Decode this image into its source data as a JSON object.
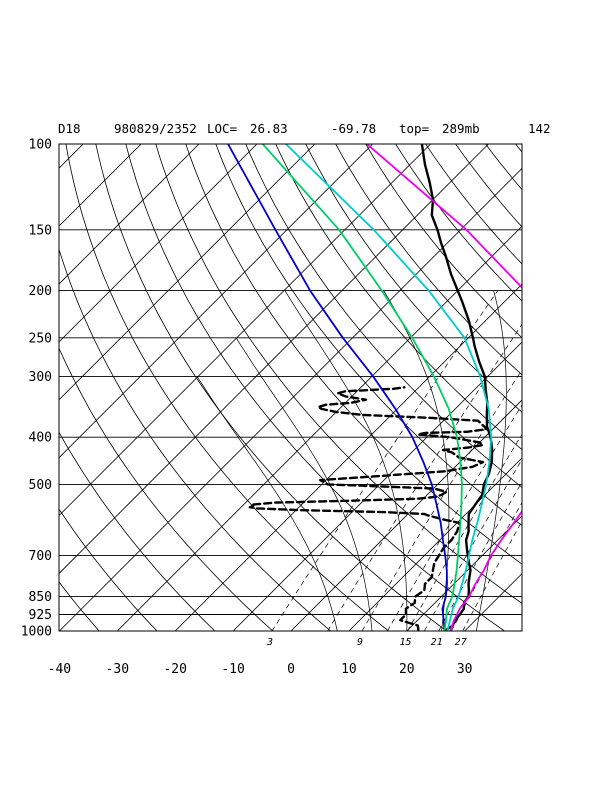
{
  "header": {
    "station": "D18",
    "datetime": "980829/2352",
    "loc_label": "LOC=",
    "lat": "26.83",
    "lon": "-69.78",
    "top_label": "top=",
    "top_value": "289mb",
    "count": "142"
  },
  "chart_data": {
    "type": "skew-t",
    "pressure_ticks": [
      100,
      150,
      200,
      250,
      300,
      400,
      500,
      700,
      850,
      925,
      1000
    ],
    "temperature_ticks": [
      -40,
      -30,
      -20,
      -10,
      0,
      10,
      20,
      30
    ],
    "mixing_ratio_labels": [
      "3",
      "9",
      "15",
      "21",
      "27"
    ],
    "xlim": [
      -40,
      40
    ],
    "ylim": [
      1000,
      100
    ],
    "y_scale": "log",
    "grid": true,
    "series": [
      {
        "kind": "temperature",
        "color": "#000000",
        "style": "solid",
        "points": [
          [
            1000,
            26.5
          ],
          [
            975,
            27
          ],
          [
            950,
            26.5
          ],
          [
            925,
            26.3
          ],
          [
            900,
            26
          ],
          [
            875,
            25
          ],
          [
            850,
            24.7
          ],
          [
            825,
            23.7
          ],
          [
            800,
            22.5
          ],
          [
            775,
            21.5
          ],
          [
            750,
            20.5
          ],
          [
            725,
            19
          ],
          [
            700,
            17.5
          ],
          [
            675,
            16
          ],
          [
            650,
            14.5
          ],
          [
            625,
            13.5
          ],
          [
            600,
            12
          ],
          [
            575,
            10.5
          ],
          [
            550,
            10
          ],
          [
            525,
            9.5
          ],
          [
            500,
            8
          ],
          [
            475,
            7
          ],
          [
            450,
            5.5
          ],
          [
            425,
            3.5
          ],
          [
            400,
            1
          ],
          [
            380,
            -1.5
          ],
          [
            360,
            -3.5
          ],
          [
            340,
            -5.5
          ],
          [
            320,
            -8
          ],
          [
            300,
            -10.5
          ],
          [
            280,
            -14
          ],
          [
            260,
            -17.5
          ],
          [
            250,
            -19.2
          ],
          [
            230,
            -23
          ],
          [
            210,
            -27.5
          ],
          [
            200,
            -30
          ],
          [
            185,
            -34
          ],
          [
            170,
            -38
          ],
          [
            160,
            -41
          ],
          [
            150,
            -44
          ],
          [
            140,
            -47.5
          ],
          [
            130,
            -50
          ],
          [
            120,
            -53.5
          ],
          [
            110,
            -57.5
          ],
          [
            100,
            -61.5
          ]
        ]
      },
      {
        "kind": "dewpoint",
        "color": "#000000",
        "style": "dashed",
        "points": [
          [
            1000,
            22
          ],
          [
            975,
            21
          ],
          [
            950,
            17
          ],
          [
            925,
            17
          ],
          [
            900,
            16
          ],
          [
            875,
            16.5
          ],
          [
            850,
            15.5
          ],
          [
            825,
            16
          ],
          [
            800,
            15
          ],
          [
            775,
            15
          ],
          [
            750,
            14
          ],
          [
            725,
            13
          ],
          [
            700,
            12.5
          ],
          [
            675,
            12
          ],
          [
            650,
            12
          ],
          [
            625,
            11.5
          ],
          [
            600,
            10.5
          ],
          [
            590,
            7
          ],
          [
            580,
            4
          ],
          [
            575,
            2.8
          ],
          [
            570,
            -4.5
          ],
          [
            565,
            -19
          ],
          [
            560,
            -27
          ],
          [
            557,
            -28.5
          ],
          [
            553,
            -28
          ],
          [
            550,
            -28.5
          ],
          [
            545,
            -25
          ],
          [
            540,
            -12
          ],
          [
            535,
            -1
          ],
          [
            530,
            2
          ],
          [
            525,
            2.5
          ],
          [
            518,
            2.8
          ],
          [
            510,
            0.2
          ],
          [
            505,
            -9
          ],
          [
            500,
            -19
          ],
          [
            490,
            -21
          ],
          [
            480,
            -11
          ],
          [
            470,
            -1
          ],
          [
            460,
            3
          ],
          [
            450,
            4
          ],
          [
            440,
            -1
          ],
          [
            430,
            -3
          ],
          [
            425,
            -5
          ],
          [
            420,
            -1
          ],
          [
            415,
            1
          ],
          [
            410,
            0
          ],
          [
            400,
            -6
          ],
          [
            395,
            -12
          ],
          [
            392,
            -11
          ],
          [
            390,
            -4
          ],
          [
            385,
            -1
          ],
          [
            380,
            -2
          ],
          [
            370,
            -4
          ],
          [
            365,
            -13
          ],
          [
            360,
            -25
          ],
          [
            355,
            -30
          ],
          [
            350,
            -33
          ],
          [
            347,
            -34
          ],
          [
            343,
            -33
          ],
          [
            340,
            -29
          ],
          [
            335,
            -27
          ],
          [
            330,
            -31
          ],
          [
            325,
            -33
          ],
          [
            322,
            -32
          ],
          [
            320,
            -28
          ],
          [
            318,
            -24
          ],
          [
            316,
            -22.5
          ]
        ]
      },
      {
        "kind": "parcel",
        "color": "#0000cc",
        "style": "solid",
        "points": [
          [
            1000,
            26.5
          ],
          [
            950,
            24.5
          ],
          [
            900,
            22.3
          ],
          [
            850,
            20.8
          ],
          [
            800,
            18.8
          ],
          [
            750,
            16.4
          ],
          [
            700,
            13.6
          ],
          [
            650,
            10.5
          ],
          [
            600,
            7.2
          ],
          [
            550,
            3.3
          ],
          [
            500,
            -1
          ],
          [
            450,
            -6.3
          ],
          [
            400,
            -12.5
          ],
          [
            350,
            -20.3
          ],
          [
            300,
            -29.8
          ],
          [
            250,
            -41.7
          ],
          [
            200,
            -55.5
          ],
          [
            150,
            -72
          ],
          [
            100,
            -95
          ]
        ]
      },
      {
        "kind": "parcel",
        "color": "#00cc66",
        "style": "solid",
        "points": [
          [
            1000,
            26.5
          ],
          [
            950,
            24.9
          ],
          [
            900,
            23.1
          ],
          [
            850,
            21.9
          ],
          [
            800,
            20.1
          ],
          [
            750,
            18.1
          ],
          [
            700,
            15.8
          ],
          [
            650,
            13.3
          ],
          [
            600,
            10.6
          ],
          [
            550,
            7.6
          ],
          [
            500,
            4.2
          ],
          [
            450,
            0.1
          ],
          [
            400,
            -4.8
          ],
          [
            350,
            -11.1
          ],
          [
            300,
            -19.3
          ],
          [
            250,
            -29.7
          ],
          [
            200,
            -43.1
          ],
          [
            150,
            -61
          ],
          [
            100,
            -89
          ]
        ]
      },
      {
        "kind": "parcel",
        "color": "#00cccc",
        "style": "solid",
        "points": [
          [
            1000,
            27
          ],
          [
            950,
            25.6
          ],
          [
            900,
            24.1
          ],
          [
            850,
            23
          ],
          [
            800,
            21.4
          ],
          [
            750,
            19.7
          ],
          [
            700,
            17.7
          ],
          [
            650,
            15.6
          ],
          [
            600,
            13.5
          ],
          [
            550,
            11.1
          ],
          [
            500,
            8.4
          ],
          [
            450,
            5.1
          ],
          [
            400,
            1.1
          ],
          [
            350,
            -4.2
          ],
          [
            300,
            -11.3
          ],
          [
            250,
            -20.7
          ],
          [
            200,
            -35
          ],
          [
            150,
            -55
          ],
          [
            100,
            -85
          ]
        ]
      },
      {
        "kind": "parcel",
        "color": "#ee00ee",
        "style": "solid",
        "points": [
          [
            1000,
            27.5
          ],
          [
            950,
            26.3
          ],
          [
            900,
            25.3
          ],
          [
            850,
            24.8
          ],
          [
            800,
            23.7
          ],
          [
            750,
            22.8
          ],
          [
            700,
            21.5
          ],
          [
            650,
            20.6
          ],
          [
            600,
            19.8
          ],
          [
            550,
            18.9
          ],
          [
            500,
            17.7
          ],
          [
            450,
            15.9
          ],
          [
            400,
            13.3
          ],
          [
            350,
            9.4
          ],
          [
            300,
            3.7
          ],
          [
            250,
            -4.6
          ],
          [
            200,
            -18.4
          ],
          [
            150,
            -39
          ],
          [
            100,
            -71
          ]
        ]
      }
    ]
  }
}
